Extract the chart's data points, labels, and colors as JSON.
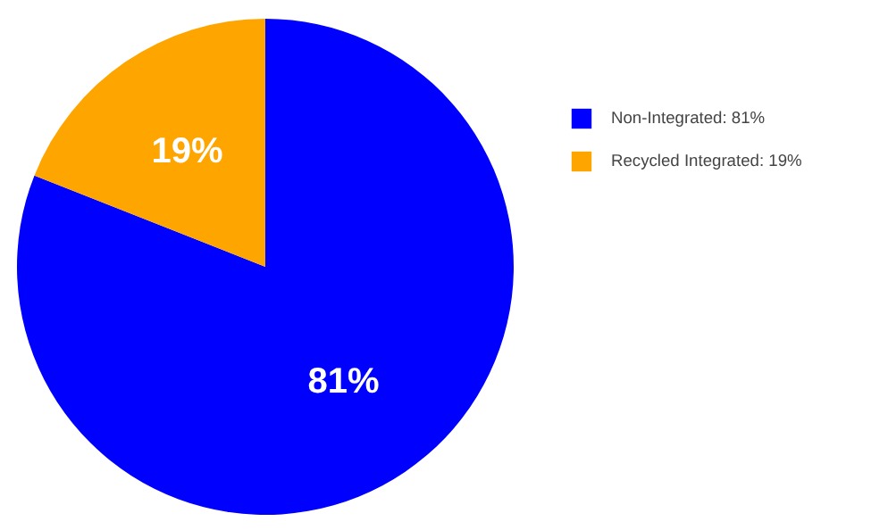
{
  "chart_data": {
    "type": "pie",
    "categories": [
      "Non-Integrated: 81%",
      "Recycled Integrated: 19%"
    ],
    "values": [
      81,
      19
    ],
    "colors": [
      "#0000ff",
      "#ffa500"
    ],
    "value_labels": [
      "81%",
      "19%"
    ],
    "legend": "right"
  }
}
